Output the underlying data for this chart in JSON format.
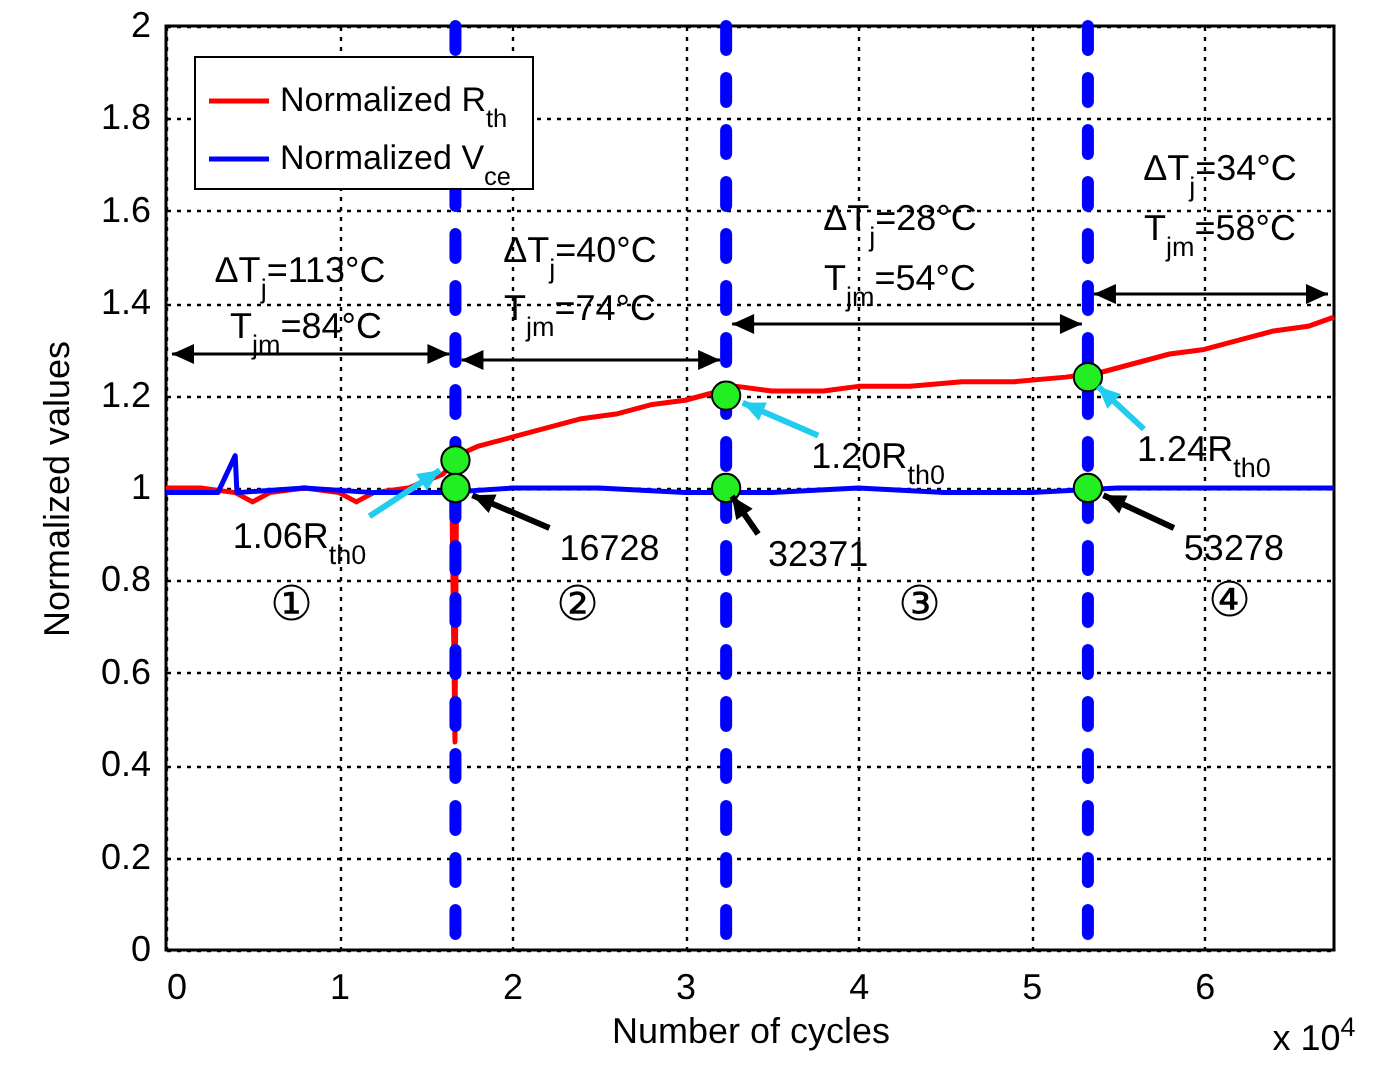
{
  "chart_data": {
    "type": "line",
    "xlabel": "Number of cycles",
    "ylabel": "Normalized values",
    "xlim": [
      0,
      6.75
    ],
    "xticks": [
      0,
      1,
      2,
      3,
      4,
      5,
      6
    ],
    "ylim": [
      0,
      2
    ],
    "yticks": [
      0,
      0.2,
      0.4,
      0.6,
      0.8,
      1,
      1.2,
      1.4,
      1.6,
      1.8,
      2
    ],
    "grid": true,
    "legend": "top left",
    "line_style": "solid",
    "series": [
      {
        "name": "Normalized R$_{th}$",
        "color": "#ff0000",
        "x": [
          0,
          0.2,
          0.4,
          0.5,
          0.6,
          0.8,
          1.0,
          1.1,
          1.2,
          1.4,
          1.6,
          1.65,
          1.67,
          1.68,
          1.8,
          2.0,
          2.2,
          2.4,
          2.6,
          2.8,
          3.0,
          3.2,
          3.3,
          3.5,
          3.8,
          4.0,
          4.3,
          4.6,
          4.9,
          5.2,
          5.4,
          5.6,
          5.8,
          6.0,
          6.2,
          6.4,
          6.6,
          6.75
        ],
        "values": [
          1.0,
          1.0,
          0.99,
          0.97,
          0.99,
          1.0,
          0.99,
          0.97,
          0.99,
          1.0,
          1.03,
          1.05,
          0.45,
          1.07,
          1.09,
          1.11,
          1.13,
          1.15,
          1.16,
          1.18,
          1.19,
          1.21,
          1.22,
          1.21,
          1.21,
          1.22,
          1.22,
          1.23,
          1.23,
          1.24,
          1.25,
          1.27,
          1.29,
          1.3,
          1.32,
          1.34,
          1.35,
          1.37
        ]
      },
      {
        "name": "Normalized V$_{ce}$",
        "color": "#0000ff",
        "x": [
          0,
          0.3,
          0.4,
          0.41,
          0.8,
          1.2,
          1.6,
          2.0,
          2.5,
          3.0,
          3.5,
          4.0,
          4.5,
          5.0,
          5.5,
          6.0,
          6.5,
          6.75
        ],
        "values": [
          0.99,
          0.99,
          1.07,
          0.99,
          1.0,
          0.99,
          0.99,
          1.0,
          1.0,
          0.99,
          0.99,
          1.0,
          0.99,
          0.99,
          1.0,
          1.0,
          1.0,
          1.0
        ]
      },
      {
        "type": "scatter",
        "marker": "circle",
        "color": "#22ee22",
        "x": [
          1.6728,
          3.2371,
          5.3278,
          1.6728,
          3.2371,
          5.3278
        ],
        "values": [
          1.06,
          1.2,
          1.24,
          1,
          1,
          1
        ]
      }
    ],
    "ref_lines": [
      {
        "axis": "x",
        "value": 1.6728,
        "color": "#0000ff",
        "line_style": "dashed"
      },
      {
        "axis": "x",
        "value": 3.2371,
        "color": "#0000ff",
        "line_style": "dashed"
      },
      {
        "axis": "x",
        "value": 5.3278,
        "color": "#0000ff",
        "line_style": "dashed"
      }
    ],
    "annotations": [
      {
        "text": "1.06R$_{th0}$",
        "x": 1.6728,
        "y": 1.06
      },
      {
        "text": "16728",
        "x": 1.6728,
        "y": 1
      },
      {
        "text": "1.20R$_{th0}$",
        "x": 3.2371,
        "y": 1.2
      },
      {
        "text": "32371",
        "x": 3.2371,
        "y": 1
      },
      {
        "text": "1.24R$_{th0}$",
        "x": 5.3278,
        "y": 1.24
      },
      {
        "text": "53278",
        "x": 5.3278,
        "y": 1
      },
      "ΔT$_{j}$=113°C",
      "T$_{jm}$=84°C",
      "ΔT$_{j}$=40°C",
      "T$_{jm}$=74°C",
      "ΔT$_{j}$=28°C",
      "T$_{jm}$=54°C",
      "ΔT$_{j}$=34°C",
      "T$_{jm}$=58°C",
      "①",
      "②",
      "③",
      "④",
      "x 10$^{4}$"
    ]
  }
}
